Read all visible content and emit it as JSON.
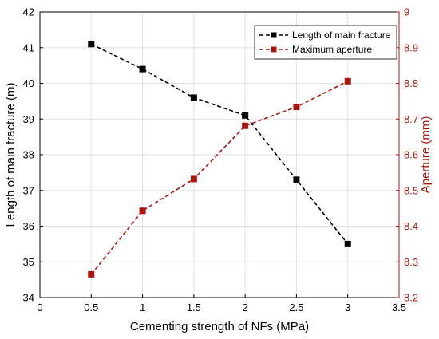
{
  "chart_data": {
    "type": "line",
    "title": "",
    "x": [
      0.5,
      1,
      1.5,
      2,
      2.5,
      3
    ],
    "xlabel": "Cementing strength of NFs (MPa)",
    "xlim": [
      0,
      3.5
    ],
    "xticks": [
      "0",
      "0.5",
      "1",
      "1.5",
      "2",
      "2.5",
      "3",
      "3.5"
    ],
    "ylabel_left": "Length of main fracture (m)",
    "ylim_left": [
      34,
      42
    ],
    "yticks_left": [
      "34",
      "35",
      "36",
      "37",
      "38",
      "39",
      "40",
      "41",
      "42"
    ],
    "ylabel_right": "Aperture (mm)",
    "ylim_right": [
      8.2,
      9.0
    ],
    "yticks_right": [
      "8.2",
      "8.3",
      "8.4",
      "8.5",
      "8.6",
      "8.7",
      "8.8",
      "8.9",
      "9"
    ],
    "grid": true,
    "legend_position": "top-right",
    "series": [
      {
        "name": "Length of main fracture",
        "axis": "left",
        "values": [
          41.1,
          40.4,
          39.6,
          39.1,
          37.3,
          35.5
        ],
        "color": "#000000",
        "line_style": "dashed",
        "marker": "square"
      },
      {
        "name": "Maximum aperture",
        "axis": "right",
        "values": [
          8.265,
          8.443,
          8.532,
          8.681,
          8.734,
          8.806
        ],
        "color": "#a3190f",
        "line_style": "dashed",
        "marker": "square"
      }
    ],
    "colors": {
      "left_axis": "#000000",
      "right_axis": "#a3190f",
      "grid": "#e3e3e3"
    }
  }
}
